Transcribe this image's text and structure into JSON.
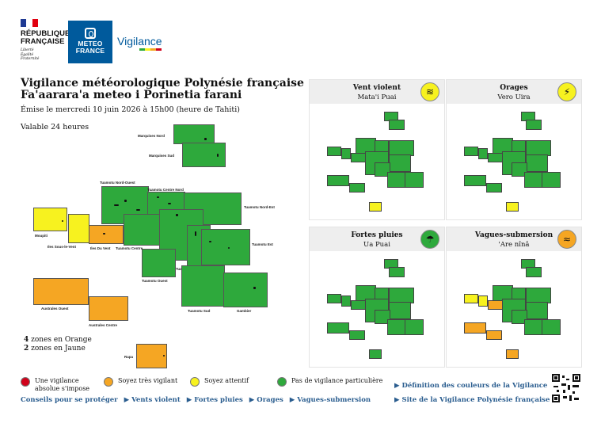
{
  "header": {
    "republique_line1": "RÉPUBLIQUE",
    "republique_line2": "FRANÇAISE",
    "motto_1": "Liberté",
    "motto_2": "Égalité",
    "motto_3": "Fraternité",
    "meteo_line1": "METEO",
    "meteo_line2": "FRANCE",
    "vigilance": "Vigilance"
  },
  "title": {
    "line1": "Vigilance météorologique Polynésie française",
    "line2": "Fa'aarara'a meteo i Porinetia farani",
    "issued": "Émise le mercredi 10 juin 2026 à 15h00 (heure de Tahiti)",
    "valid": "Valable 24 heures"
  },
  "zones": {
    "marquises_nord": "Marquises Nord",
    "marquises_sud": "Marquises Sud",
    "tuamotu_nord_ouest": "Tuamotu Nord-Ouest",
    "tuamotu_centre_nord": "Tuamotu Centre Nord",
    "tuamotu_nord_est": "Tuamotu Nord-Est",
    "moupiti": "Moupiti",
    "iles_sous_le_vent": "Iles Sous-le-Vent",
    "iles_du_vent": "Iles Du Vent",
    "tuamotu_centre": "Tuamotu Centre",
    "tuamotu_est": "Tuamotu Est",
    "tuamotu_centre_sud": "Tuamotu Centre Sud",
    "tuamotu_ouest": "Tuamotu Ouest",
    "australes_ouest": "Australes Ouest",
    "australes_centre": "Australes Centre",
    "tuamotu_sud": "Tuamotu Sud",
    "gambier": "Gambier",
    "rapa": "Rapa"
  },
  "counts": {
    "orange_n": "4",
    "orange_text": "zones en Orange",
    "yellow_n": "2",
    "yellow_text": "zones en Jaune"
  },
  "panels": [
    {
      "title": "Vent violent",
      "subtitle": "Mata'i Puai",
      "icon": "wind-icon",
      "color": "#f7f21f"
    },
    {
      "title": "Orages",
      "subtitle": "Vero Uira",
      "icon": "lightning-icon",
      "color": "#f7f21f"
    },
    {
      "title": "Fortes pluies",
      "subtitle": "Ua Puai",
      "icon": "rain-icon",
      "color": "#2ea93c"
    },
    {
      "title": "Vagues-submersion",
      "subtitle": "'Are nînâ",
      "icon": "waves-icon",
      "color": "#f5a623"
    }
  ],
  "legend": {
    "red": "Une vigilance absolue s'impose",
    "orange": "Soyez très vigilant",
    "yellow": "Soyez attentif",
    "green": "Pas de vigilance particulière"
  },
  "colors": {
    "red": "#d0021b",
    "orange": "#f5a623",
    "yellow": "#f7f21f",
    "green": "#2ea93c",
    "link": "#2a5d8f"
  },
  "links": {
    "conseils": "Conseils pour se protéger",
    "vents": "▶ Vents violent",
    "pluies": "▶ Fortes pluies",
    "orages": "▶ Orages",
    "vagues": "▶ Vagues-submersion",
    "definition": "▶ Définition des couleurs de la Vigilance",
    "site": "▶ Site de la Vigilance Polynésie française"
  }
}
